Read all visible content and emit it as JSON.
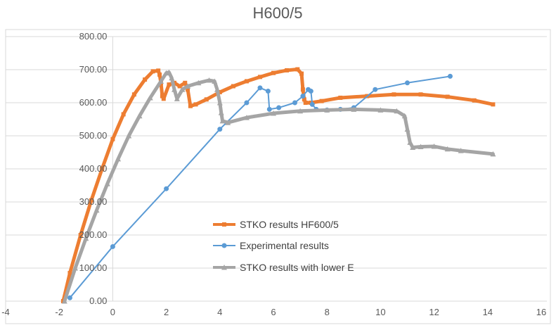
{
  "chart_data": {
    "type": "scatter",
    "title": "H600/5",
    "xlabel": "",
    "ylabel": "",
    "xlim": [
      -4,
      16
    ],
    "ylim": [
      0,
      800
    ],
    "x_ticks": [
      "-4",
      "-2",
      "0",
      "2",
      "4",
      "6",
      "8",
      "10",
      "12",
      "14",
      "16"
    ],
    "y_ticks": [
      "0.00",
      "100.00",
      "200.00",
      "300.00",
      "400.00",
      "500.00",
      "600.00",
      "700.00",
      "800.00"
    ],
    "grid": {
      "horizontal": true,
      "vertical": false
    },
    "legend_position": "center",
    "series": [
      {
        "name": "STKO results HF600/5",
        "color": "#ED7D31",
        "marker": "square",
        "x": [
          -1.85,
          -1.6,
          -1.2,
          -0.8,
          -0.4,
          0.0,
          0.4,
          0.8,
          1.2,
          1.5,
          1.7,
          1.75,
          1.8,
          1.85,
          1.9,
          2.1,
          2.3,
          2.5,
          2.7,
          2.8,
          2.9,
          3.1,
          3.5,
          4.0,
          4.5,
          5.0,
          5.5,
          6.0,
          6.5,
          6.9,
          7.05,
          7.1,
          7.15,
          7.2,
          7.4,
          7.8,
          8.5,
          9.5,
          10.5,
          11.5,
          12.5,
          13.5,
          14.2
        ],
        "y": [
          0,
          85,
          200,
          305,
          400,
          490,
          565,
          625,
          670,
          695,
          697,
          685,
          660,
          620,
          612,
          655,
          660,
          650,
          660,
          640,
          590,
          595,
          610,
          632,
          650,
          665,
          678,
          690,
          698,
          701,
          688,
          640,
          610,
          600,
          600,
          605,
          615,
          620,
          625,
          625,
          618,
          607,
          595
        ]
      },
      {
        "name": "Experimental results",
        "color": "#5B9BD5",
        "marker": "circle",
        "x": [
          -1.6,
          0.0,
          2.0,
          4.0,
          5.0,
          5.5,
          5.8,
          5.85,
          6.2,
          6.8,
          7.1,
          7.3,
          7.4,
          7.45,
          7.6,
          8.0,
          8.5,
          9.0,
          9.8,
          11.0,
          12.6
        ],
        "y": [
          10,
          165,
          340,
          520,
          600,
          645,
          635,
          580,
          585,
          600,
          620,
          640,
          635,
          595,
          580,
          578,
          580,
          585,
          640,
          660,
          680
        ]
      },
      {
        "name": "STKO results with lower E",
        "color": "#A5A5A5",
        "marker": "triangle",
        "x": [
          -1.8,
          -1.4,
          -1.0,
          -0.6,
          -0.2,
          0.2,
          0.6,
          1.0,
          1.4,
          1.8,
          2.0,
          2.1,
          2.2,
          2.3,
          2.4,
          2.6,
          2.8,
          3.2,
          3.6,
          3.8,
          3.9,
          4.0,
          4.05,
          4.1,
          4.3,
          5.0,
          6.0,
          7.0,
          8.0,
          9.0,
          10.0,
          10.6,
          10.9,
          11.0,
          11.1,
          11.2,
          11.5,
          12.0,
          12.5,
          13.0,
          14.2
        ],
        "y": [
          0,
          100,
          190,
          275,
          355,
          430,
          500,
          560,
          615,
          665,
          690,
          692,
          675,
          640,
          612,
          640,
          650,
          660,
          668,
          665,
          640,
          600,
          570,
          545,
          540,
          555,
          568,
          575,
          578,
          580,
          578,
          575,
          560,
          520,
          480,
          465,
          467,
          468,
          460,
          455,
          445
        ]
      }
    ]
  }
}
